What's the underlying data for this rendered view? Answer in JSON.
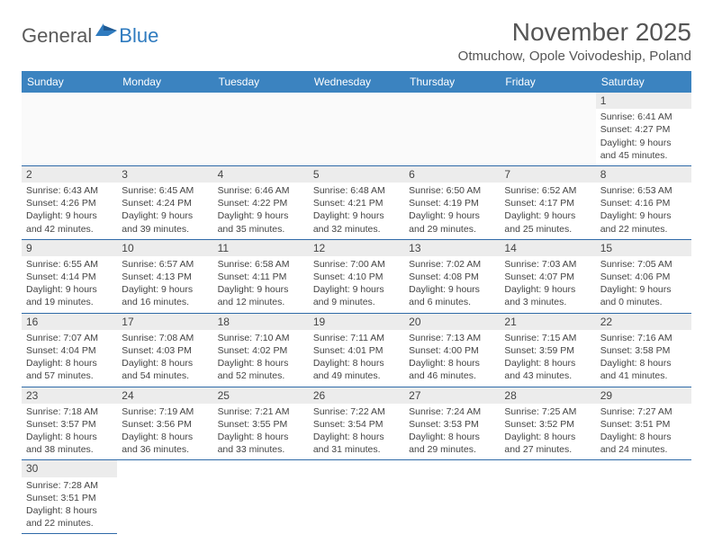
{
  "logo": {
    "text1": "General",
    "text2": "Blue"
  },
  "title": "November 2025",
  "location": "Otmuchow, Opole Voivodeship, Poland",
  "colors": {
    "header_bg": "#3b83c0",
    "header_text": "#ffffff",
    "border": "#2f6aa8",
    "daynum_bg": "#ececec",
    "text": "#444444",
    "logo_gray": "#5a5a5a",
    "logo_blue": "#2f7bbf"
  },
  "weekdays": [
    "Sunday",
    "Monday",
    "Tuesday",
    "Wednesday",
    "Thursday",
    "Friday",
    "Saturday"
  ],
  "first_weekday_index": 6,
  "days": [
    {
      "n": 1,
      "sunrise": "6:41 AM",
      "sunset": "4:27 PM",
      "dayh": 9,
      "daym": 45
    },
    {
      "n": 2,
      "sunrise": "6:43 AM",
      "sunset": "4:26 PM",
      "dayh": 9,
      "daym": 42
    },
    {
      "n": 3,
      "sunrise": "6:45 AM",
      "sunset": "4:24 PM",
      "dayh": 9,
      "daym": 39
    },
    {
      "n": 4,
      "sunrise": "6:46 AM",
      "sunset": "4:22 PM",
      "dayh": 9,
      "daym": 35
    },
    {
      "n": 5,
      "sunrise": "6:48 AM",
      "sunset": "4:21 PM",
      "dayh": 9,
      "daym": 32
    },
    {
      "n": 6,
      "sunrise": "6:50 AM",
      "sunset": "4:19 PM",
      "dayh": 9,
      "daym": 29
    },
    {
      "n": 7,
      "sunrise": "6:52 AM",
      "sunset": "4:17 PM",
      "dayh": 9,
      "daym": 25
    },
    {
      "n": 8,
      "sunrise": "6:53 AM",
      "sunset": "4:16 PM",
      "dayh": 9,
      "daym": 22
    },
    {
      "n": 9,
      "sunrise": "6:55 AM",
      "sunset": "4:14 PM",
      "dayh": 9,
      "daym": 19
    },
    {
      "n": 10,
      "sunrise": "6:57 AM",
      "sunset": "4:13 PM",
      "dayh": 9,
      "daym": 16
    },
    {
      "n": 11,
      "sunrise": "6:58 AM",
      "sunset": "4:11 PM",
      "dayh": 9,
      "daym": 12
    },
    {
      "n": 12,
      "sunrise": "7:00 AM",
      "sunset": "4:10 PM",
      "dayh": 9,
      "daym": 9
    },
    {
      "n": 13,
      "sunrise": "7:02 AM",
      "sunset": "4:08 PM",
      "dayh": 9,
      "daym": 6
    },
    {
      "n": 14,
      "sunrise": "7:03 AM",
      "sunset": "4:07 PM",
      "dayh": 9,
      "daym": 3
    },
    {
      "n": 15,
      "sunrise": "7:05 AM",
      "sunset": "4:06 PM",
      "dayh": 9,
      "daym": 0
    },
    {
      "n": 16,
      "sunrise": "7:07 AM",
      "sunset": "4:04 PM",
      "dayh": 8,
      "daym": 57
    },
    {
      "n": 17,
      "sunrise": "7:08 AM",
      "sunset": "4:03 PM",
      "dayh": 8,
      "daym": 54
    },
    {
      "n": 18,
      "sunrise": "7:10 AM",
      "sunset": "4:02 PM",
      "dayh": 8,
      "daym": 52
    },
    {
      "n": 19,
      "sunrise": "7:11 AM",
      "sunset": "4:01 PM",
      "dayh": 8,
      "daym": 49
    },
    {
      "n": 20,
      "sunrise": "7:13 AM",
      "sunset": "4:00 PM",
      "dayh": 8,
      "daym": 46
    },
    {
      "n": 21,
      "sunrise": "7:15 AM",
      "sunset": "3:59 PM",
      "dayh": 8,
      "daym": 43
    },
    {
      "n": 22,
      "sunrise": "7:16 AM",
      "sunset": "3:58 PM",
      "dayh": 8,
      "daym": 41
    },
    {
      "n": 23,
      "sunrise": "7:18 AM",
      "sunset": "3:57 PM",
      "dayh": 8,
      "daym": 38
    },
    {
      "n": 24,
      "sunrise": "7:19 AM",
      "sunset": "3:56 PM",
      "dayh": 8,
      "daym": 36
    },
    {
      "n": 25,
      "sunrise": "7:21 AM",
      "sunset": "3:55 PM",
      "dayh": 8,
      "daym": 33
    },
    {
      "n": 26,
      "sunrise": "7:22 AM",
      "sunset": "3:54 PM",
      "dayh": 8,
      "daym": 31
    },
    {
      "n": 27,
      "sunrise": "7:24 AM",
      "sunset": "3:53 PM",
      "dayh": 8,
      "daym": 29
    },
    {
      "n": 28,
      "sunrise": "7:25 AM",
      "sunset": "3:52 PM",
      "dayh": 8,
      "daym": 27
    },
    {
      "n": 29,
      "sunrise": "7:27 AM",
      "sunset": "3:51 PM",
      "dayh": 8,
      "daym": 24
    },
    {
      "n": 30,
      "sunrise": "7:28 AM",
      "sunset": "3:51 PM",
      "dayh": 8,
      "daym": 22
    }
  ],
  "labels": {
    "sunrise": "Sunrise:",
    "sunset": "Sunset:",
    "daylight1": "Daylight:",
    "hours": "hours",
    "and": "and",
    "minutes": "minutes."
  }
}
